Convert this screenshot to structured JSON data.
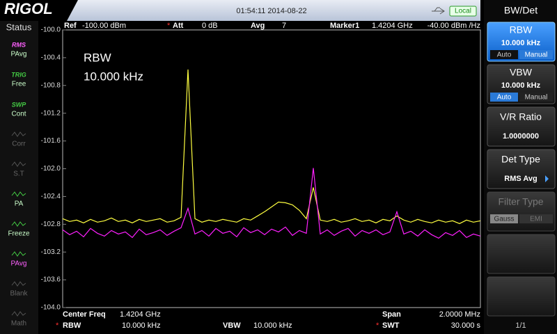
{
  "header": {
    "logo": "RIGOL",
    "datetime": "01:54:11 2014-08-22",
    "mode": "Local"
  },
  "status": {
    "title": "Status",
    "items": [
      {
        "icon": "RMS",
        "label": "PAvg"
      },
      {
        "icon": "TRIG",
        "label": "Free"
      },
      {
        "icon": "SWP",
        "label": "Cont"
      },
      {
        "icon": "",
        "label": "Corr"
      },
      {
        "icon": "",
        "label": "S.T"
      },
      {
        "icon": "",
        "label": "PA"
      },
      {
        "icon": "",
        "label": "Freeze"
      },
      {
        "icon": "",
        "label": "PAvg"
      },
      {
        "icon": "",
        "label": "Blank"
      },
      {
        "icon": "",
        "label": "Math"
      }
    ]
  },
  "info_bar": {
    "ref_label": "Ref",
    "ref_value": "-100.00 dBm",
    "att_flag": "*",
    "att_label": "Att",
    "att_value": "0 dB",
    "avg_label": "Avg",
    "avg_value": "7",
    "marker_label": "Marker1",
    "marker_freq": "1.4204 GHz",
    "marker_value": "-40.00 dBm /Hz"
  },
  "chart_data": {
    "type": "line",
    "annotations": [
      "RBW",
      "10.000 kHz"
    ],
    "ylim": [
      -104,
      -100
    ],
    "yticks": [
      {
        "value": -100,
        "label": "-100.0"
      },
      -100.4,
      -100.8,
      -101.2,
      -101.6,
      {
        "value": -102,
        "label": "-102.0"
      },
      -102.4,
      -102.8,
      -103.2,
      -103.6,
      {
        "value": -104,
        "label": "-104.0"
      }
    ],
    "series": [
      {
        "color": "#ffff40",
        "values": [
          -102.72,
          -102.76,
          -102.74,
          -102.78,
          -102.73,
          -102.77,
          -102.75,
          -102.71,
          -102.76,
          -102.74,
          -102.78,
          -102.73,
          -102.76,
          -102.74,
          -102.72,
          -102.77,
          -102.75,
          -102.7,
          -100.57,
          -102.72,
          -102.77,
          -102.74,
          -102.76,
          -102.73,
          -102.75,
          -102.77,
          -102.72,
          -102.74,
          -102.68,
          -102.62,
          -102.55,
          -102.48,
          -102.49,
          -102.52,
          -102.6,
          -102.72,
          -102.27,
          -102.74,
          -102.76,
          -102.73,
          -102.77,
          -102.75,
          -102.72,
          -102.76,
          -102.74,
          -102.78,
          -102.73,
          -102.75,
          -102.68,
          -102.74,
          -102.77,
          -102.73,
          -102.76,
          -102.78,
          -102.74,
          -102.77,
          -102.75,
          -102.79,
          -102.74,
          -102.77,
          -102.75
        ]
      },
      {
        "color": "#ff20ff",
        "values": [
          -102.88,
          -102.95,
          -102.9,
          -102.98,
          -102.86,
          -102.93,
          -102.97,
          -102.89,
          -102.94,
          -102.91,
          -102.99,
          -102.87,
          -102.95,
          -102.92,
          -102.88,
          -102.96,
          -102.9,
          -102.85,
          -102.57,
          -102.94,
          -102.89,
          -102.97,
          -102.86,
          -102.93,
          -102.9,
          -102.98,
          -102.85,
          -102.92,
          -102.88,
          -102.95,
          -102.87,
          -102.91,
          -102.84,
          -102.96,
          -102.89,
          -102.93,
          -101.99,
          -102.94,
          -102.88,
          -102.96,
          -102.9,
          -102.86,
          -102.97,
          -102.89,
          -102.93,
          -102.88,
          -102.95,
          -102.91,
          -102.62,
          -102.94,
          -102.9,
          -102.97,
          -102.88,
          -102.95,
          -103.0,
          -102.92,
          -102.96,
          -102.89,
          -102.99,
          -102.94,
          -102.97
        ]
      }
    ]
  },
  "footer": {
    "center_label": "Center Freq",
    "center_value": "1.4204 GHz",
    "span_label": "Span",
    "span_value": "2.0000 MHz",
    "rbw_flag": "*",
    "rbw_label": "RBW",
    "rbw_value": "10.000 kHz",
    "vbw_label": "VBW",
    "vbw_value": "10.000 kHz",
    "swt_flag": "*",
    "swt_label": "SWT",
    "swt_value": "30.000 s"
  },
  "menu": {
    "title": "BW/Det",
    "rbw": {
      "label": "RBW",
      "value": "10.000 kHz",
      "auto": "Auto",
      "manual": "Manual"
    },
    "vbw": {
      "label": "VBW",
      "value": "10.000 kHz",
      "auto": "Auto",
      "manual": "Manual"
    },
    "vr": {
      "label": "V/R Ratio",
      "value": "1.0000000"
    },
    "det": {
      "label": "Det Type",
      "value": "RMS Avg"
    },
    "filter": {
      "label": "Filter Type",
      "gauss": "Gauss",
      "emi": "EMI"
    },
    "page": "1/1"
  }
}
